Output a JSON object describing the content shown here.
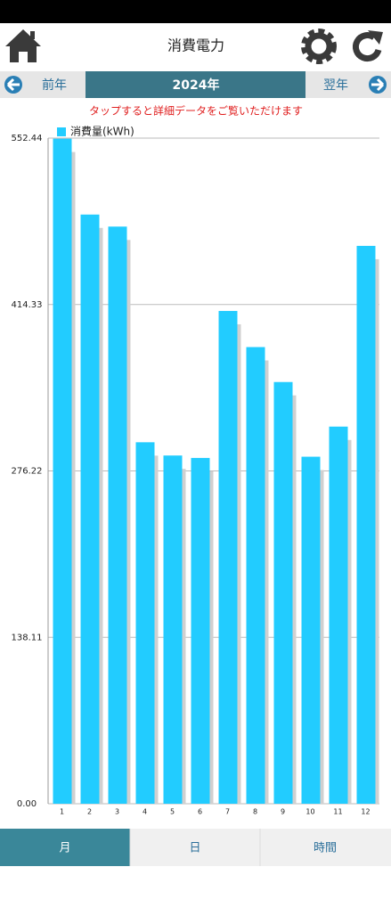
{
  "header": {
    "title": "消費電力"
  },
  "nav": {
    "prev": "前年",
    "current": "2024年",
    "next": "翌年"
  },
  "note": "タップすると詳細データをご覧いただけます",
  "chart_data": {
    "type": "bar",
    "categories": [
      "1",
      "2",
      "3",
      "4",
      "5",
      "6",
      "7",
      "8",
      "9",
      "10",
      "11",
      "12"
    ],
    "series": [
      {
        "name": "消費量(kWh)",
        "color": "#22ccff",
        "values": [
          552,
          489,
          479,
          300,
          289,
          287,
          409,
          379,
          350,
          288,
          313,
          463
        ]
      }
    ],
    "ylim": [
      0,
      552.44
    ],
    "yticks": [
      {
        "value": 0,
        "label": "0.00"
      },
      138.11,
      276.22,
      414.33,
      552.44
    ],
    "grid": true
  },
  "tabs": [
    "月",
    "日",
    "時間"
  ]
}
